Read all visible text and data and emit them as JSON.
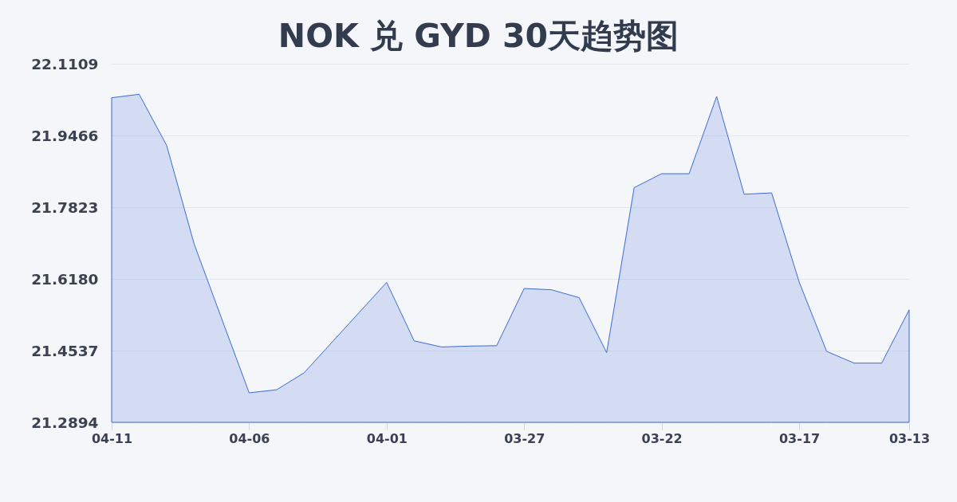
{
  "chart_data": {
    "type": "area",
    "title": "NOK 兑 GYD 30天趋势图",
    "categories": [
      "04-11",
      null,
      null,
      null,
      null,
      "04-06",
      null,
      null,
      null,
      null,
      "04-01",
      null,
      null,
      null,
      null,
      "03-27",
      null,
      null,
      null,
      null,
      "03-22",
      null,
      null,
      null,
      null,
      "03-17",
      null,
      null,
      null,
      "03-13"
    ],
    "series": [
      {
        "color": "#3b6bd4",
        "values": [
          22.033,
          22.041,
          21.924,
          21.698,
          21.527,
          21.357,
          21.364,
          21.403,
          21.472,
          21.541,
          21.61,
          21.476,
          21.462,
          21.464,
          21.465,
          21.596,
          21.593,
          21.575,
          21.449,
          21.827,
          21.859,
          21.859,
          22.036,
          21.812,
          21.815,
          21.611,
          21.452,
          21.425,
          21.425,
          21.547
        ]
      }
    ],
    "ylim": [
      21.2894,
      22.1109
    ],
    "yticks": [
      21.2894,
      21.4537,
      {
        "value": 21.618,
        "label": "21.6180"
      },
      21.7823,
      21.9466,
      22.1109
    ],
    "grid": "y"
  }
}
